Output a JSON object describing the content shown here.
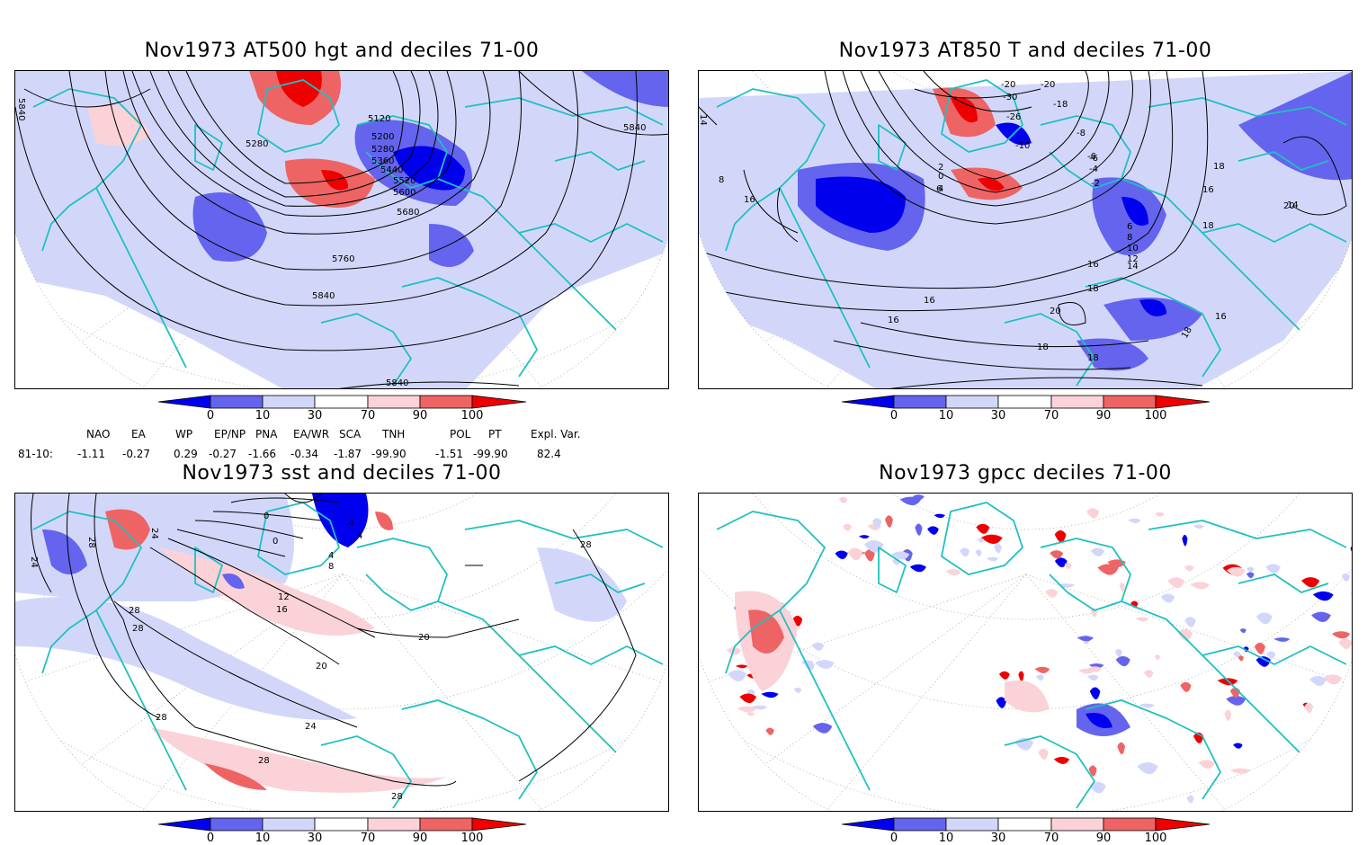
{
  "colors": {
    "very_low": "#0000ee",
    "low": "#6464ee",
    "below": "#d2d7fa",
    "above": "#fad2d7",
    "high": "#ee6464",
    "very_high": "#ee0000",
    "coast": "#20c0c0",
    "contour": "#000000"
  },
  "colorbar": {
    "ticks": [
      "0",
      "10",
      "30",
      "70",
      "90",
      "100"
    ]
  },
  "panels": [
    {
      "title": "Nov1973 AT500 hgt and deciles 71-00",
      "contour_labels": [
        "5840",
        "5120",
        "5200",
        "5280",
        "5280",
        "5360",
        "5440",
        "5520",
        "5600",
        "5680",
        "5760",
        "5840",
        "5840",
        "5840"
      ]
    },
    {
      "title": "Nov1973 AT850 T and deciles 71-00",
      "contour_labels": [
        "14",
        "-20",
        "-20",
        "-30",
        "-18",
        "-26",
        "-10",
        "-8",
        "-6",
        "-6",
        "-4",
        "-2",
        "2",
        "0",
        "4",
        "6",
        "8",
        "16",
        "18",
        "16",
        "18",
        "20",
        "14",
        "6",
        "8",
        "10",
        "12",
        "14",
        "16",
        "18",
        "16",
        "16",
        "20",
        "18",
        "16",
        "18",
        "18"
      ]
    },
    {
      "title": "Nov1973 sst and deciles 71-00",
      "contour_labels": [
        "24",
        "24",
        "28",
        "28",
        "28",
        "0",
        "0",
        "4",
        "4",
        "8",
        "4",
        "12",
        "16",
        "20",
        "20",
        "24",
        "28",
        "28",
        "28",
        "28"
      ]
    },
    {
      "title": "Nov1973 gpcc deciles 71-00",
      "contour_labels": []
    }
  ],
  "indices": {
    "headers": [
      "NAO",
      "EA",
      "WP",
      "EP/NP",
      "PNA",
      "EA/WR",
      "SCA",
      "TNH",
      "POL",
      "PT",
      "Expl. Var."
    ],
    "row_label": "81-10:",
    "values": [
      "-1.11",
      "-0.27",
      "0.29",
      "-0.27",
      "-1.66",
      "-0.34",
      "-1.87",
      "-99.90",
      "-1.51",
      "-99.90",
      "82.4"
    ]
  }
}
